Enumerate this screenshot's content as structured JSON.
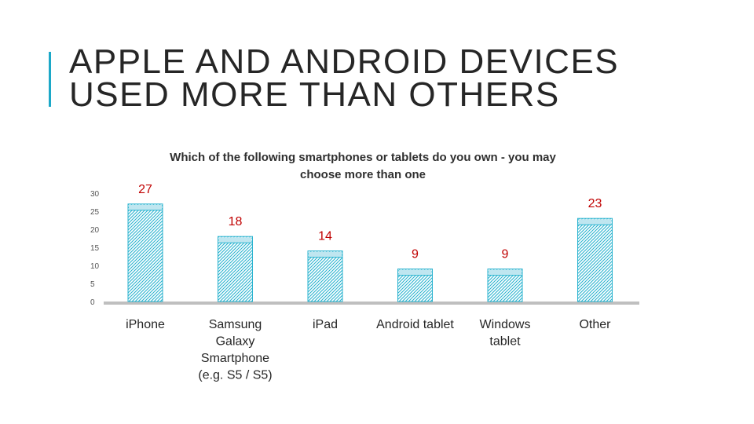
{
  "slide": {
    "title_lines": [
      "APPLE AND ANDROID DEVICES",
      "USED MORE THAN OTHERS"
    ],
    "accent_color": "#1ca8c8"
  },
  "chart_data": {
    "type": "bar",
    "title": "Which of the following smartphones or tablets do you own - you may choose more than one",
    "title_lines": [
      "Which of the following smartphones or tablets do you own - you may",
      "choose more than one"
    ],
    "categories": [
      "iPhone",
      "Samsung Galaxy Smartphone (e.g. S5 / S5)",
      "iPad",
      "Android tablet",
      "Windows tablet",
      "Other"
    ],
    "category_lines": [
      [
        "iPhone"
      ],
      [
        "Samsung",
        "Galaxy",
        "Smartphone",
        "(e.g. S5 / S5)"
      ],
      [
        "iPad"
      ],
      [
        "Android tablet"
      ],
      [
        "Windows",
        "tablet"
      ],
      [
        "Other"
      ]
    ],
    "values": [
      27,
      18,
      14,
      9,
      9,
      23
    ],
    "data_labels": [
      "27",
      "18",
      "14",
      "9",
      "9",
      "23"
    ],
    "yticks": [
      "0",
      "5",
      "10",
      "15",
      "20",
      "25",
      "30"
    ],
    "ylim": [
      0,
      30
    ],
    "grid": false,
    "legend": "none",
    "bar_color": "#2ab3cf",
    "label_color": "#c00000",
    "floor_color": "#bfbfbf"
  }
}
